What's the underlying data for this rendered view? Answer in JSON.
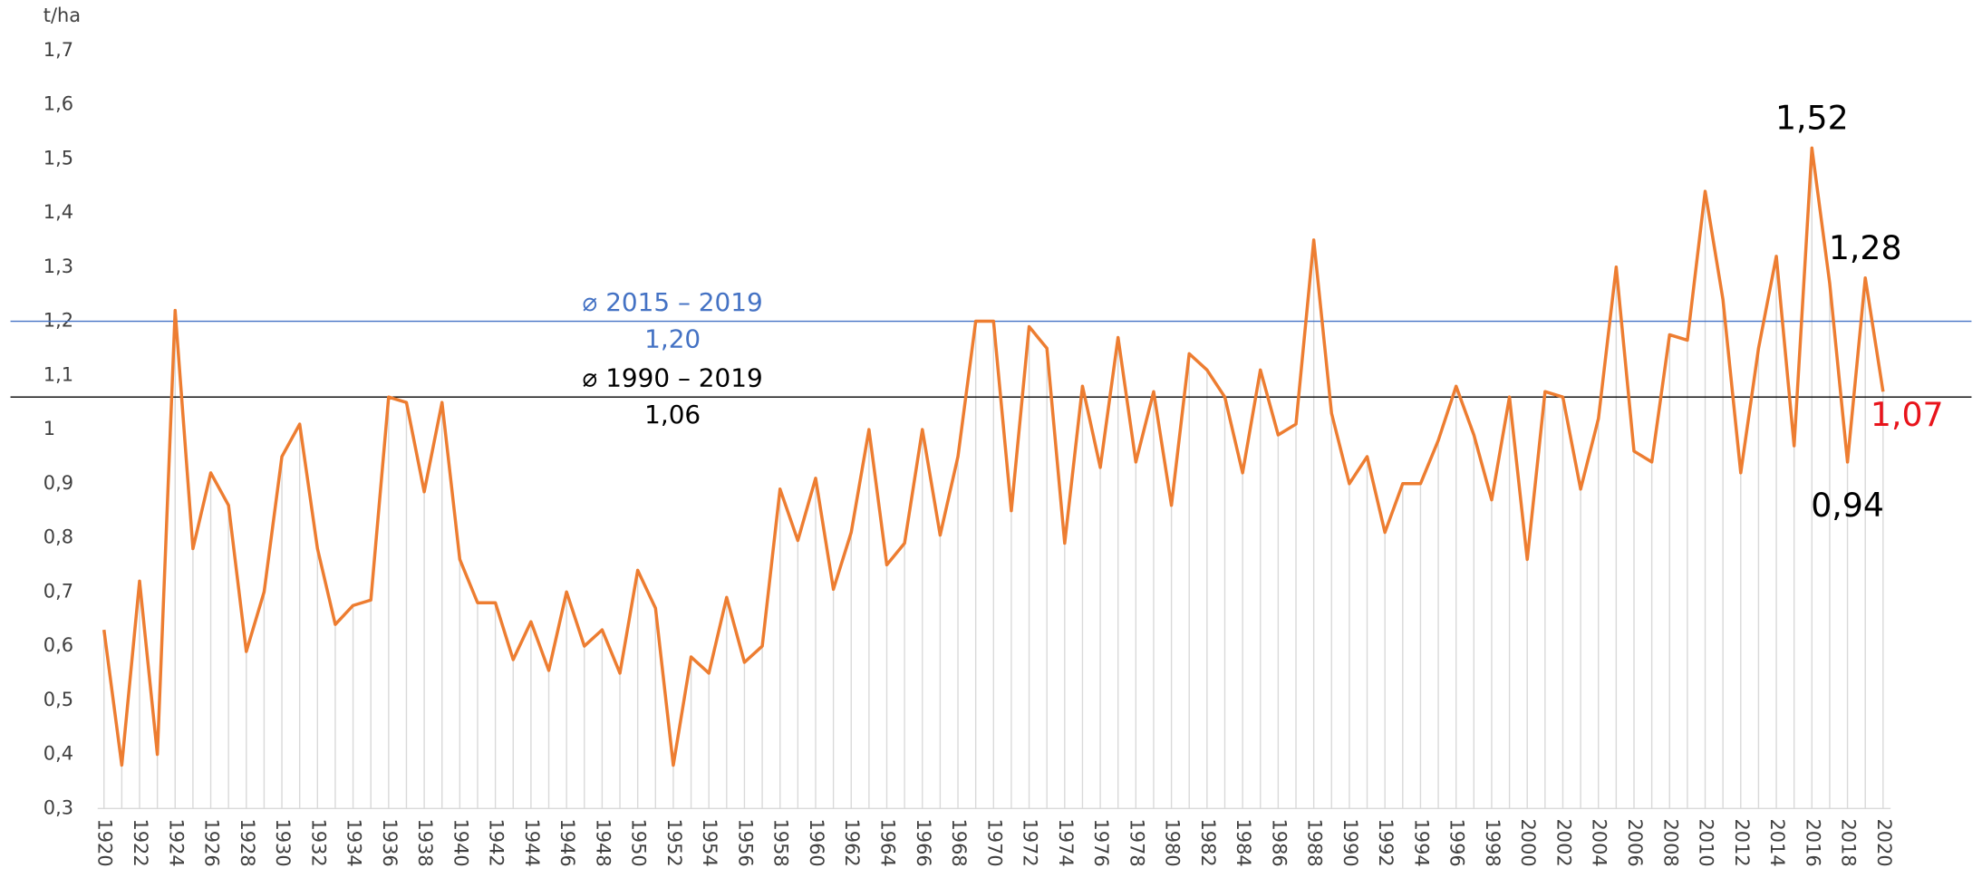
{
  "chart_data": {
    "type": "line",
    "y_axis_label": "t/ha",
    "x": [
      1920,
      1921,
      1922,
      1923,
      1924,
      1925,
      1926,
      1927,
      1928,
      1929,
      1930,
      1931,
      1932,
      1933,
      1934,
      1935,
      1936,
      1937,
      1938,
      1939,
      1940,
      1941,
      1942,
      1943,
      1944,
      1945,
      1946,
      1947,
      1948,
      1949,
      1950,
      1951,
      1952,
      1953,
      1954,
      1955,
      1956,
      1957,
      1958,
      1959,
      1960,
      1961,
      1962,
      1963,
      1964,
      1965,
      1966,
      1967,
      1968,
      1969,
      1970,
      1971,
      1972,
      1973,
      1974,
      1975,
      1976,
      1977,
      1978,
      1979,
      1980,
      1981,
      1982,
      1983,
      1984,
      1985,
      1986,
      1987,
      1988,
      1989,
      1990,
      1991,
      1992,
      1993,
      1994,
      1995,
      1996,
      1997,
      1998,
      1999,
      2000,
      2001,
      2002,
      2003,
      2004,
      2005,
      2006,
      2007,
      2008,
      2009,
      2010,
      2011,
      2012,
      2013,
      2014,
      2015,
      2016,
      2017,
      2018,
      2019,
      2020
    ],
    "series": [
      {
        "color": "#ed7d31",
        "values": [
          0.63,
          0.38,
          0.72,
          0.4,
          1.22,
          0.78,
          0.92,
          0.86,
          0.59,
          0.7,
          0.95,
          1.01,
          0.78,
          0.64,
          0.675,
          0.685,
          1.06,
          1.05,
          0.885,
          1.05,
          0.76,
          0.68,
          0.68,
          0.575,
          0.645,
          0.555,
          0.7,
          0.6,
          0.63,
          0.55,
          0.74,
          0.67,
          0.38,
          0.58,
          0.55,
          0.69,
          0.57,
          0.6,
          0.89,
          0.795,
          0.91,
          0.705,
          0.81,
          1.0,
          0.75,
          0.79,
          1.0,
          0.805,
          0.95,
          1.2,
          1.2,
          0.85,
          1.19,
          1.15,
          0.79,
          1.08,
          0.93,
          1.17,
          0.94,
          1.07,
          0.86,
          1.14,
          1.11,
          1.06,
          0.92,
          1.11,
          0.99,
          1.01,
          1.35,
          1.03,
          0.9,
          0.95,
          0.81,
          0.9,
          0.9,
          0.98,
          1.08,
          0.99,
          0.87,
          1.06,
          0.76,
          1.07,
          1.06,
          0.89,
          1.02,
          1.3,
          0.96,
          0.94,
          1.175,
          1.165,
          1.44,
          1.24,
          0.92,
          1.15,
          1.32,
          0.97,
          1.52,
          1.27,
          0.94,
          1.28,
          1.07
        ],
        "value_labels": [
          null,
          null,
          null,
          null,
          null,
          null,
          null,
          null,
          null,
          null,
          null,
          null,
          null,
          null,
          null,
          null,
          null,
          null,
          null,
          null,
          null,
          null,
          null,
          null,
          null,
          null,
          null,
          null,
          null,
          null,
          null,
          null,
          null,
          null,
          null,
          null,
          null,
          null,
          null,
          null,
          null,
          null,
          null,
          null,
          null,
          null,
          null,
          null,
          null,
          null,
          null,
          null,
          null,
          null,
          null,
          null,
          null,
          null,
          null,
          null,
          null,
          null,
          null,
          null,
          null,
          null,
          null,
          null,
          null,
          null,
          null,
          null,
          null,
          null,
          null,
          null,
          null,
          null,
          null,
          null,
          null,
          null,
          null,
          null,
          null,
          null,
          null,
          null,
          null,
          null,
          null,
          null,
          null,
          null,
          null,
          null,
          "1,52",
          null,
          "0,94",
          "1,28",
          "1,07"
        ]
      }
    ],
    "last_label_color": "#e8141b",
    "drop_line_color": "#d9d9d9",
    "reference_lines": [
      {
        "name": "⌀ 2015 – 2019",
        "value": 1.2,
        "label": "1,20",
        "color": "#4472c4"
      },
      {
        "name": "⌀ 1990 – 2019",
        "value": 1.06,
        "label": "1,06",
        "color": "#000000"
      }
    ],
    "xlim": [
      1920,
      2020
    ],
    "xticks": [
      1920,
      1922,
      1924,
      1926,
      1928,
      1930,
      1932,
      1934,
      1936,
      1938,
      1940,
      1942,
      1944,
      1946,
      1948,
      1950,
      1952,
      1954,
      1956,
      1958,
      1960,
      1962,
      1964,
      1966,
      1968,
      1970,
      1972,
      1974,
      1976,
      1978,
      1980,
      1982,
      1984,
      1986,
      1988,
      1990,
      1992,
      1994,
      1996,
      1998,
      2000,
      2002,
      2004,
      2006,
      2008,
      2010,
      2012,
      2014,
      2016,
      2018,
      2020
    ],
    "ylim": [
      0.3,
      1.7
    ],
    "yticks": [
      {
        "value": 0.3,
        "label": "0,3"
      },
      {
        "value": 0.4,
        "label": "0,4"
      },
      {
        "value": 0.5,
        "label": "0,5"
      },
      {
        "value": 0.6,
        "label": "0,6"
      },
      {
        "value": 0.7,
        "label": "0,7"
      },
      {
        "value": 0.8,
        "label": "0,8"
      },
      {
        "value": 0.9,
        "label": "0,9"
      },
      1,
      {
        "value": 1.1,
        "label": "1,1"
      },
      {
        "value": 1.2,
        "label": "1,2"
      },
      {
        "value": 1.3,
        "label": "1,3"
      },
      {
        "value": 1.4,
        "label": "1,4"
      },
      {
        "value": 1.5,
        "label": "1,5"
      },
      {
        "value": 1.6,
        "label": "1,6"
      },
      {
        "value": 1.7,
        "label": "1,7"
      }
    ]
  }
}
